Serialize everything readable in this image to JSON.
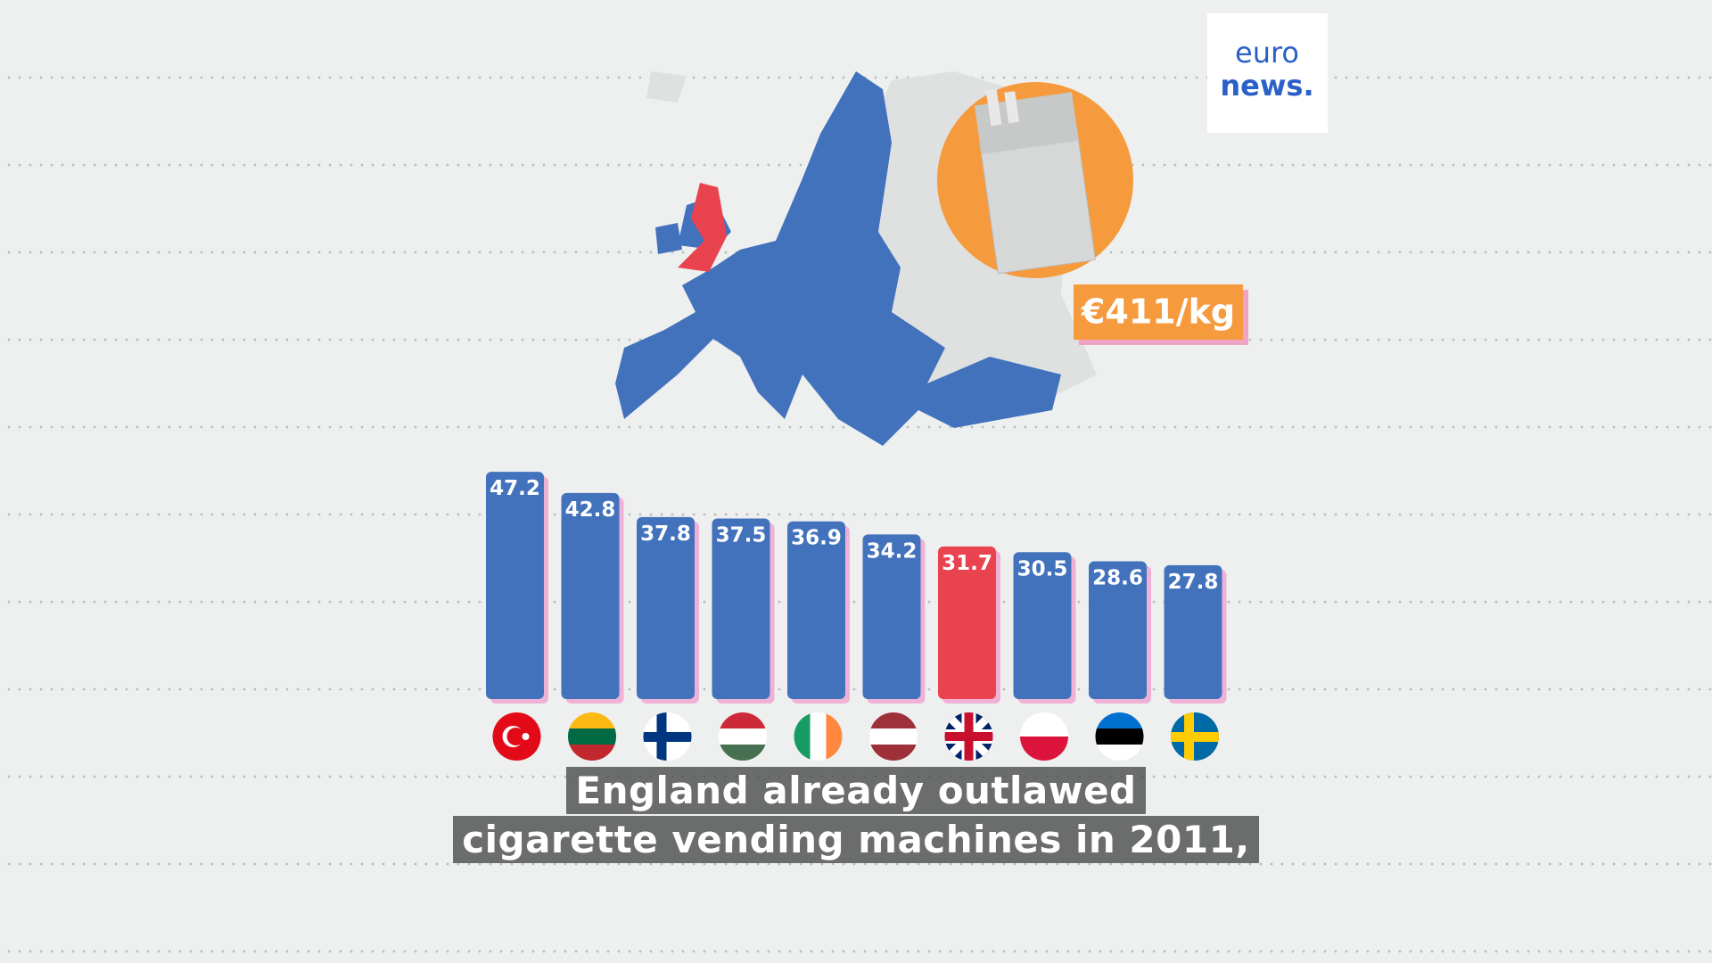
{
  "chart_data": {
    "type": "bar",
    "categories": [
      null,
      null,
      null,
      null,
      null,
      null,
      null,
      null,
      null,
      null
    ],
    "values": [
      47.2,
      42.8,
      37.8,
      37.5,
      36.9,
      34.2,
      31.7,
      30.5,
      28.6,
      27.8
    ],
    "colors": [
      "#4372bd",
      "#4372bd",
      "#4372bd",
      "#4372bd",
      "#4372bd",
      "#4372bd",
      "#e8434f",
      "#4372bd",
      "#4372bd",
      "#4372bd"
    ],
    "annotations": [
      "€411/kg"
    ]
  },
  "logo": {
    "line1": "euro",
    "line2": "news."
  },
  "captions": [
    "England already outlawed",
    "cigarette vending machines in 2011,"
  ]
}
